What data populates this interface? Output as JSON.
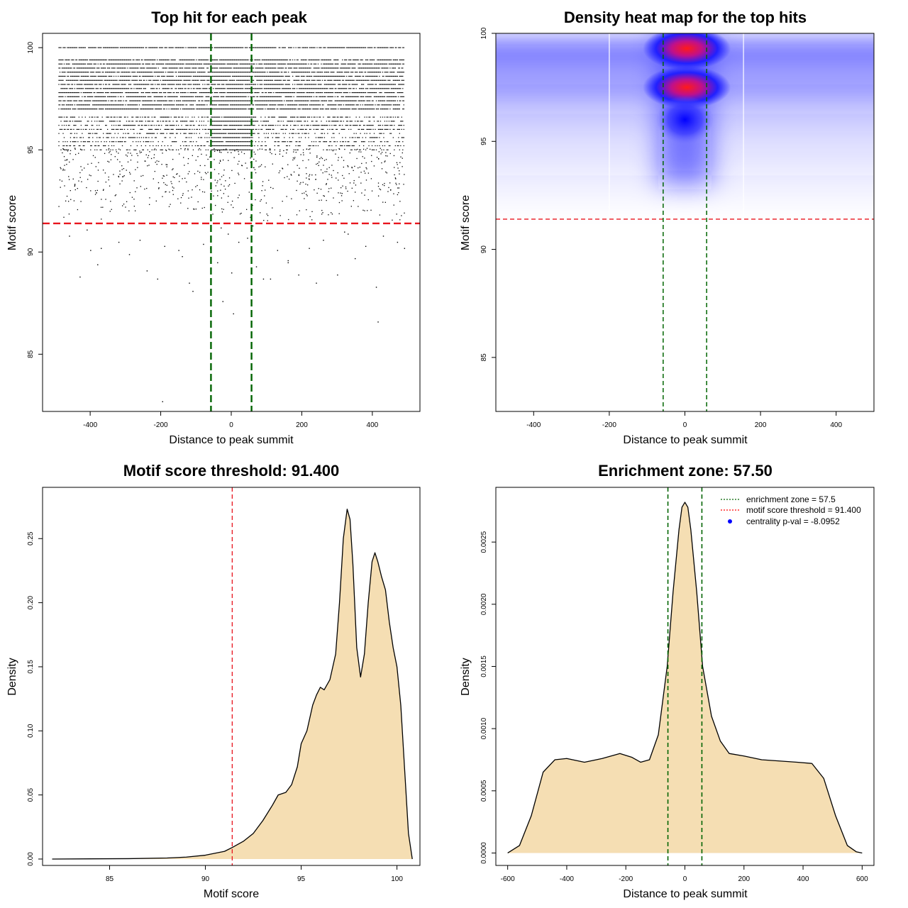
{
  "chart_data": [
    {
      "id": "scatter",
      "type": "scatter",
      "title": "Top hit for each peak",
      "xlabel": "Distance to peak summit",
      "ylabel": "Motif score",
      "xlim": [
        -535,
        535
      ],
      "ylim": [
        82.2,
        100.7
      ],
      "xticks": [
        "-400",
        "-200",
        "0",
        "200",
        "400"
      ],
      "yticks": [
        "85",
        "90",
        "95",
        "100"
      ],
      "threshold": 91.4,
      "zone": [
        -57.5,
        57.5
      ],
      "grid": false,
      "high_score_levels": [
        100,
        99.4,
        99.2,
        99,
        98.8,
        98.6,
        98.4,
        98.2,
        98,
        97.8,
        97.6,
        97.4,
        97.2,
        97,
        96.6,
        96.4,
        96.2,
        96,
        95.8,
        95.6,
        95.4,
        95.2,
        95
      ],
      "low_score_points": [
        {
          "x": -460,
          "y": 90.8
        },
        {
          "x": -410,
          "y": 91.1
        },
        {
          "x": -370,
          "y": 90.2
        },
        {
          "x": -320,
          "y": 90.5
        },
        {
          "x": -290,
          "y": 89.9
        },
        {
          "x": -260,
          "y": 90.6
        },
        {
          "x": -240,
          "y": 89.1
        },
        {
          "x": -210,
          "y": 88.7
        },
        {
          "x": -190,
          "y": 90.3
        },
        {
          "x": -150,
          "y": 90.1
        },
        {
          "x": -140,
          "y": 89.8
        },
        {
          "x": -120,
          "y": 88.5
        },
        {
          "x": -110,
          "y": 88.1
        },
        {
          "x": -80,
          "y": 90.4
        },
        {
          "x": -60,
          "y": 90.2
        },
        {
          "x": -40,
          "y": 89.5
        },
        {
          "x": -25,
          "y": 87.6
        },
        {
          "x": -10,
          "y": 90.9
        },
        {
          "x": 5,
          "y": 87.0
        },
        {
          "x": 20,
          "y": 90.5
        },
        {
          "x": 45,
          "y": 90.7
        },
        {
          "x": 70,
          "y": 89.3
        },
        {
          "x": 90,
          "y": 88.7
        },
        {
          "x": 110,
          "y": 88.7
        },
        {
          "x": 130,
          "y": 90.1
        },
        {
          "x": 160,
          "y": 89.6
        },
        {
          "x": 190,
          "y": 88.9
        },
        {
          "x": 220,
          "y": 90.2
        },
        {
          "x": 240,
          "y": 88.5
        },
        {
          "x": 260,
          "y": 90.6
        },
        {
          "x": 300,
          "y": 88.9
        },
        {
          "x": 320,
          "y": 91.0
        },
        {
          "x": 350,
          "y": 89.7
        },
        {
          "x": 380,
          "y": 90.3
        },
        {
          "x": 410,
          "y": 88.3
        },
        {
          "x": 415,
          "y": 86.6
        },
        {
          "x": 430,
          "y": 90.8
        },
        {
          "x": 470,
          "y": 90.5
        },
        {
          "x": 490,
          "y": 90.2
        },
        {
          "x": -430,
          "y": 88.8
        },
        {
          "x": -400,
          "y": 90.1
        },
        {
          "x": -380,
          "y": 89.4
        },
        {
          "x": -196,
          "y": 82.7
        },
        {
          "x": 0,
          "y": 89.0
        },
        {
          "x": 160,
          "y": 89.5
        },
        {
          "x": 330,
          "y": 90.9
        },
        {
          "x": -30,
          "y": 91.2
        },
        {
          "x": 60,
          "y": 91.3
        }
      ]
    },
    {
      "id": "heatmap",
      "type": "heatmap",
      "title": "Density heat map for the top hits",
      "xlabel": "Distance to peak summit",
      "ylabel": "Motif score",
      "xlim": [
        -500,
        500
      ],
      "ylim": [
        82.5,
        100
      ],
      "xticks": [
        "-400",
        "-200",
        "0",
        "200",
        "400"
      ],
      "yticks": [
        "85",
        "90",
        "95",
        "100"
      ],
      "threshold": 91.4,
      "zone": [
        -57.5,
        57.5
      ],
      "colors": [
        "#ffffff",
        "#0000ff",
        "#ff0000"
      ],
      "hotspots": [
        {
          "x": 5,
          "y": 99.3,
          "intensity": 1.0
        },
        {
          "x": 5,
          "y": 97.5,
          "intensity": 1.0
        },
        {
          "x": 0,
          "y": 96.0,
          "intensity": 0.6
        }
      ]
    },
    {
      "id": "score-density",
      "type": "area",
      "title": "Motif score threshold: 91.400",
      "xlabel": "Motif score",
      "ylabel": "Density",
      "xlim": [
        81.5,
        101.2
      ],
      "ylim": [
        -0.005,
        0.29
      ],
      "xticks": [
        "85",
        "90",
        "95",
        "100"
      ],
      "yticks": [
        "0.00",
        "0.05",
        "0.10",
        "0.15",
        "0.20",
        "0.25"
      ],
      "threshold": 91.4,
      "fill": "#f5deb3",
      "x": [
        82,
        86,
        88,
        89,
        90,
        91,
        91.4,
        92,
        92.5,
        93,
        93.5,
        93.8,
        94.2,
        94.5,
        94.8,
        95,
        95.3,
        95.6,
        95.8,
        96,
        96.2,
        96.5,
        96.8,
        97,
        97.2,
        97.4,
        97.55,
        97.7,
        97.9,
        98.1,
        98.3,
        98.5,
        98.7,
        98.85,
        99,
        99.2,
        99.4,
        99.6,
        99.8,
        100,
        100.2,
        100.4,
        100.6,
        100.8
      ],
      "y": [
        0.0,
        0.0003,
        0.0008,
        0.0015,
        0.003,
        0.006,
        0.009,
        0.014,
        0.02,
        0.03,
        0.042,
        0.05,
        0.052,
        0.058,
        0.072,
        0.09,
        0.1,
        0.12,
        0.128,
        0.134,
        0.132,
        0.14,
        0.16,
        0.2,
        0.25,
        0.273,
        0.265,
        0.23,
        0.165,
        0.142,
        0.16,
        0.2,
        0.232,
        0.239,
        0.232,
        0.22,
        0.21,
        0.185,
        0.165,
        0.15,
        0.12,
        0.07,
        0.02,
        0.0
      ]
    },
    {
      "id": "distance-density",
      "type": "area",
      "title": "Enrichment zone: 57.50",
      "xlabel": "Distance to peak summit",
      "ylabel": "Density",
      "xlim": [
        -640,
        640
      ],
      "ylim": [
        -0.0001,
        0.00294
      ],
      "xticks": [
        "-600",
        "-400",
        "-200",
        "0",
        "200",
        "400",
        "600"
      ],
      "yticks": [
        "0.0000",
        "0.0005",
        "0.0010",
        "0.0015",
        "0.0020",
        "0.0025"
      ],
      "zone": [
        -57.5,
        57.5
      ],
      "fill": "#f5deb3",
      "legend": [
        "enrichment zone = 57.5",
        "motif score threshold = 91.400",
        "centrality p-val = -8.0952"
      ],
      "legend_colors": [
        "#006400",
        "#ff0000",
        "#0000ff"
      ],
      "x": [
        -600,
        -560,
        -520,
        -480,
        -440,
        -400,
        -340,
        -280,
        -220,
        -180,
        -150,
        -120,
        -90,
        -60,
        -40,
        -20,
        -10,
        0,
        10,
        20,
        40,
        60,
        90,
        120,
        150,
        200,
        260,
        320,
        380,
        430,
        470,
        510,
        550,
        580,
        600
      ],
      "y": [
        0.0,
        6e-05,
        0.0003,
        0.00065,
        0.00075,
        0.00076,
        0.00073,
        0.00076,
        0.0008,
        0.00077,
        0.00073,
        0.00075,
        0.00095,
        0.0015,
        0.0021,
        0.0026,
        0.00278,
        0.00282,
        0.00278,
        0.0026,
        0.0021,
        0.0015,
        0.0011,
        0.0009,
        0.0008,
        0.00078,
        0.00075,
        0.00074,
        0.00073,
        0.00072,
        0.0006,
        0.0003,
        6e-05,
        1e-05,
        0.0
      ]
    }
  ]
}
